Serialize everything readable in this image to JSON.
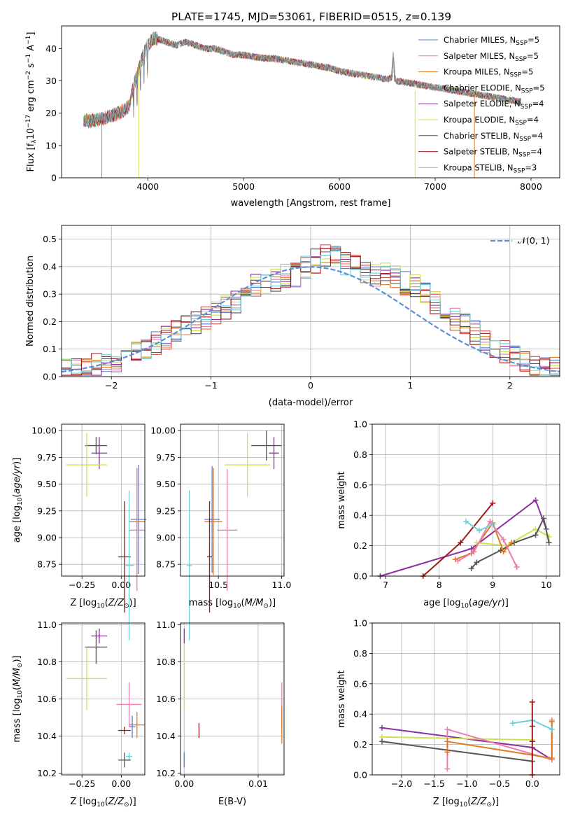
{
  "figure": {
    "title": "PLATE=1745, MJD=53061, FIBERID=0515, z=0.139"
  },
  "series_colors": {
    "Chabrier MILES": "#5b7fd8",
    "Salpeter MILES": "#e87fae",
    "Kroupa MILES": "#e07a20",
    "Chabrier ELODIE": "#d9534f",
    "Salpeter ELODIE": "#8e2ea0",
    "Kroupa ELODIE": "#cfe050",
    "Chabrier STELIB": "#555555",
    "Salpeter STELIB": "#9b1b1b",
    "Kroupa STELIB": "#6fd0d6"
  },
  "chart_data": [
    {
      "id": "spectrum",
      "type": "line",
      "title": "PLATE=1745, MJD=53061, FIBERID=0515, z=0.139",
      "xlabel": "wavelength [Angstrom, rest frame]",
      "ylabel": "Flux [f$_\\lambda$10$^{-17}$ erg cm$^{-2}$ s$^{-1}$ A$^{-1}$]",
      "ylabel_parts": [
        "Flux [f",
        "λ",
        "10",
        "−17",
        " erg cm",
        "−2",
        " s",
        "−1",
        " A",
        "−1",
        "]"
      ],
      "xlim": [
        3100,
        8300
      ],
      "ylim": [
        0,
        47
      ],
      "xticks": [
        4000,
        5000,
        6000,
        7000,
        8000
      ],
      "xtick_labels": [
        "4000",
        "5000",
        "6000",
        "7000",
        "8000"
      ],
      "yticks": [
        0,
        10,
        20,
        30,
        40
      ],
      "ytick_labels": [
        "0",
        "10",
        "20",
        "30",
        "40"
      ],
      "legend_position": "top-right",
      "legend": [
        {
          "name": "Chabrier MILES",
          "nssp": "5",
          "color": "#5b7fd8"
        },
        {
          "name": "Salpeter MILES",
          "nssp": "5",
          "color": "#e87fae"
        },
        {
          "name": "Kroupa MILES",
          "nssp": "5",
          "color": "#e07a20"
        },
        {
          "name": "Chabrier ELODIE",
          "nssp": "5",
          "color": "#d9534f"
        },
        {
          "name": "Salpeter ELODIE",
          "nssp": "4",
          "color": "#8e2ea0"
        },
        {
          "name": "Kroupa ELODIE",
          "nssp": "4",
          "color": "#cfe050"
        },
        {
          "name": "Chabrier STELIB",
          "nssp": "4",
          "color": "#555555"
        },
        {
          "name": "Salpeter STELIB",
          "nssp": "4",
          "color": "#9b1b1b"
        },
        {
          "name": "Kroupa STELIB",
          "nssp": "3",
          "color": "#6fd0d6"
        }
      ],
      "series": [
        {
          "name": "data",
          "color": "#888888",
          "x": [
            3330,
            3400,
            3500,
            3600,
            3700,
            3800,
            3850,
            3900,
            3950,
            4000,
            4050,
            4100,
            4200,
            4300,
            4400,
            4500,
            4600,
            4700,
            4800,
            4900,
            5000,
            5100,
            5200,
            5300,
            5400,
            5500,
            5600,
            5700,
            5800,
            5900,
            6000,
            6100,
            6200,
            6300,
            6400,
            6500,
            6550,
            6562,
            6575,
            6600,
            6700,
            6800,
            6900,
            7000,
            7100,
            7200,
            7300,
            7400,
            7500,
            7600,
            7700,
            7800,
            7900
          ],
          "y": [
            18,
            17.5,
            18,
            19,
            20,
            22,
            28,
            33,
            38,
            41,
            43,
            43,
            42,
            41,
            42,
            41,
            40,
            40,
            39,
            38,
            38,
            37.5,
            37,
            37,
            36.5,
            36,
            35.5,
            35,
            34.5,
            34,
            33,
            32.5,
            32,
            31.5,
            31,
            30.5,
            31,
            38,
            31,
            30,
            29.5,
            29,
            28.5,
            28,
            27.5,
            27,
            26.5,
            26,
            25.5,
            25,
            24.5,
            24,
            23.5
          ]
        }
      ],
      "masked_drops": [
        3520,
        3905,
        6790,
        7410
      ]
    },
    {
      "id": "residuals",
      "type": "bar",
      "xlabel": "(data-model)/error",
      "ylabel": "Normed distribution",
      "xlim": [
        -2.5,
        2.5
      ],
      "ylim": [
        0,
        0.55
      ],
      "xticks": [
        -2,
        -1,
        0,
        1,
        2
      ],
      "xtick_labels": [
        "−2",
        "−1",
        "0",
        "1",
        "2"
      ],
      "yticks": [
        0.0,
        0.1,
        0.2,
        0.3,
        0.4,
        0.5
      ],
      "ytick_labels": [
        "0.0",
        "0.1",
        "0.2",
        "0.3",
        "0.4",
        "0.5"
      ],
      "bin_width": 0.1,
      "bin_start": -2.5,
      "legend": [
        {
          "name": "𝒩(0, 1)",
          "color": "#5b8fd8",
          "style": "dashed"
        }
      ],
      "legend_position": "top-right",
      "base_values": [
        0.03,
        0.03,
        0.03,
        0.04,
        0.05,
        0.06,
        0.07,
        0.09,
        0.1,
        0.12,
        0.14,
        0.16,
        0.18,
        0.2,
        0.21,
        0.23,
        0.25,
        0.27,
        0.3,
        0.33,
        0.34,
        0.35,
        0.37,
        0.37,
        0.4,
        0.42,
        0.44,
        0.43,
        0.41,
        0.4,
        0.38,
        0.37,
        0.37,
        0.36,
        0.34,
        0.33,
        0.3,
        0.27,
        0.24,
        0.21,
        0.19,
        0.16,
        0.13,
        0.11,
        0.09,
        0.07,
        0.06,
        0.04,
        0.04,
        0.03
      ],
      "series": [
        {
          "name": "Chabrier MILES",
          "color": "#5b7fd8"
        },
        {
          "name": "Salpeter MILES",
          "color": "#e87fae"
        },
        {
          "name": "Kroupa MILES",
          "color": "#e07a20"
        },
        {
          "name": "Chabrier ELODIE",
          "color": "#d9534f"
        },
        {
          "name": "Salpeter ELODIE",
          "color": "#8e2ea0"
        },
        {
          "name": "Kroupa ELODIE",
          "color": "#cfe050"
        },
        {
          "name": "Chabrier STELIB",
          "color": "#555555"
        },
        {
          "name": "Salpeter STELIB",
          "color": "#9b1b1b"
        },
        {
          "name": "Kroupa STELIB",
          "color": "#6fd0d6"
        }
      ]
    },
    {
      "id": "age-vs-z",
      "type": "scatter",
      "xlabel": "Z [log₁₀(Z/Z⊙)]",
      "xlabel_parts": [
        "Z [log",
        "10",
        "(",
        "Z/Z",
        "⊙",
        ")]"
      ],
      "ylabel_parts": [
        "age  [log",
        "10",
        "(",
        "age/yr",
        ")]"
      ],
      "xlim": [
        -0.38,
        0.15
      ],
      "ylim": [
        8.64,
        10.06
      ],
      "xticks": [
        -0.25,
        0.0
      ],
      "xtick_labels": [
        "−0.25",
        "0.00"
      ],
      "yticks": [
        8.75,
        9.0,
        9.25,
        9.5,
        9.75,
        10.0
      ],
      "ytick_labels": [
        "8.75",
        "9.00",
        "9.25",
        "9.50",
        "9.75",
        "10.00"
      ],
      "points": [
        {
          "color": "#555555",
          "x": -0.16,
          "y": 9.86,
          "xerr": 0.07,
          "yerr": 0.08
        },
        {
          "color": "#8e2ea0",
          "x": -0.14,
          "y": 9.79,
          "xerr": 0.05,
          "yerr": 0.15
        },
        {
          "color": "#cfe050",
          "x": -0.22,
          "y": 9.68,
          "xerr": 0.13,
          "yerr": 0.3
        },
        {
          "color": "#5b7fd8",
          "x": 0.11,
          "y": 9.17,
          "xerr": 0.05,
          "yerr": 0.51
        },
        {
          "color": "#e07a20",
          "x": 0.1,
          "y": 9.15,
          "xerr": 0.05,
          "yerr": 0.5
        },
        {
          "color": "#e87fae",
          "x": 0.1,
          "y": 9.07,
          "xerr": 0.05,
          "yerr": 0.57
        },
        {
          "color": "#9b1b1b",
          "x": 0.02,
          "y": 8.82,
          "xerr": 0.04,
          "yerr": 0.52
        },
        {
          "color": "#6fd0d6",
          "x": 0.05,
          "y": 8.74,
          "xerr": 0.03,
          "yerr": 0.7
        }
      ]
    },
    {
      "id": "age-vs-mass",
      "type": "scatter",
      "xlabel_parts": [
        "mass [log",
        "10",
        "(",
        "M/M",
        "⊙",
        ")]"
      ],
      "xlim": [
        10.2,
        11.02
      ],
      "ylim": [
        8.64,
        10.06
      ],
      "xticks": [
        10.5,
        11.0
      ],
      "xtick_labels": [
        "10.5",
        "11.0"
      ],
      "yticks": [
        8.75,
        9.0,
        9.25,
        9.5,
        9.75,
        10.0
      ],
      "ytick_labels": [
        "8.75",
        "9.00",
        "9.25",
        "9.50",
        "9.75",
        "10.00"
      ],
      "points": [
        {
          "color": "#555555",
          "x": 10.88,
          "y": 9.86,
          "xerr": 0.12,
          "yerr": 0.14
        },
        {
          "color": "#8e2ea0",
          "x": 10.94,
          "y": 9.79,
          "xerr": 0.04,
          "yerr": 0.15
        },
        {
          "color": "#cfe050",
          "x": 10.73,
          "y": 9.68,
          "xerr": 0.18,
          "yerr": 0.3
        },
        {
          "color": "#5b7fd8",
          "x": 10.45,
          "y": 9.17,
          "xerr": 0.06,
          "yerr": 0.5
        },
        {
          "color": "#e07a20",
          "x": 10.46,
          "y": 9.15,
          "xerr": 0.07,
          "yerr": 0.5
        },
        {
          "color": "#e87fae",
          "x": 10.57,
          "y": 9.07,
          "xerr": 0.08,
          "yerr": 0.57
        },
        {
          "color": "#9b1b1b",
          "x": 10.43,
          "y": 8.82,
          "xerr": 0.02,
          "yerr": 0.52
        },
        {
          "color": "#6fd0d6",
          "x": 10.27,
          "y": 8.74,
          "xerr": 0.02,
          "yerr": 0.7
        }
      ]
    },
    {
      "id": "massweight-vs-age",
      "type": "line",
      "ylabel": "mass weight",
      "xlabel_parts": [
        "age  [log",
        "10",
        "(",
        "age/yr",
        ")]"
      ],
      "xlim": [
        6.75,
        10.25
      ],
      "ylim": [
        0.0,
        1.0
      ],
      "xticks": [
        7,
        8,
        9,
        10
      ],
      "xtick_labels": [
        "7",
        "8",
        "9",
        "10"
      ],
      "yticks": [
        0.0,
        0.2,
        0.4,
        0.6,
        0.8,
        1.0
      ],
      "ytick_labels": [
        "0.0",
        "0.2",
        "0.4",
        "0.6",
        "0.8",
        "1.0"
      ],
      "series": [
        {
          "color": "#8e2ea0",
          "x": [
            6.9,
            8.6,
            9.8,
            10.0
          ],
          "y": [
            0.0,
            0.18,
            0.5,
            0.31
          ]
        },
        {
          "color": "#9b1b1b",
          "x": [
            7.7,
            8.4,
            9.0
          ],
          "y": [
            0.0,
            0.22,
            0.48
          ]
        },
        {
          "color": "#cfe050",
          "x": [
            8.7,
            9.25,
            9.8,
            10.05
          ],
          "y": [
            0.22,
            0.2,
            0.31,
            0.26
          ]
        },
        {
          "color": "#555555",
          "x": [
            8.6,
            8.7,
            9.15,
            9.4,
            9.8,
            9.95,
            10.05
          ],
          "y": [
            0.05,
            0.09,
            0.17,
            0.22,
            0.27,
            0.38,
            0.22
          ]
        },
        {
          "color": "#e07a20",
          "x": [
            8.3,
            8.6,
            9.0,
            9.2,
            9.35
          ],
          "y": [
            0.11,
            0.15,
            0.35,
            0.16,
            0.22
          ]
        },
        {
          "color": "#e87fae",
          "x": [
            8.35,
            8.65,
            8.95,
            9.2,
            9.45
          ],
          "y": [
            0.1,
            0.16,
            0.36,
            0.24,
            0.06
          ]
        },
        {
          "color": "#6fd0d6",
          "x": [
            8.5,
            8.75,
            9.0
          ],
          "y": [
            0.36,
            0.3,
            0.34
          ]
        }
      ]
    },
    {
      "id": "mass-vs-z",
      "type": "scatter",
      "xlabel_parts": [
        "Z [log",
        "10",
        "(",
        "Z/Z",
        "⊙",
        ")]"
      ],
      "ylabel_parts": [
        "mass [log",
        "10",
        "(",
        "M/M",
        "⊙",
        ")]"
      ],
      "xlim": [
        -0.38,
        0.15
      ],
      "ylim": [
        10.19,
        11.01
      ],
      "xticks": [
        -0.25,
        0.0
      ],
      "xtick_labels": [
        "−0.25",
        "0.00"
      ],
      "yticks": [
        10.2,
        10.4,
        10.6,
        10.8,
        11.0
      ],
      "ytick_labels": [
        "10.2",
        "10.4",
        "10.6",
        "10.8",
        "11.0"
      ],
      "points": [
        {
          "color": "#8e2ea0",
          "x": -0.14,
          "y": 10.94,
          "xerr": 0.05,
          "yerr": 0.04
        },
        {
          "color": "#555555",
          "x": -0.16,
          "y": 10.88,
          "xerr": 0.07,
          "yerr": 0.09
        },
        {
          "color": "#cfe050",
          "x": -0.22,
          "y": 10.71,
          "xerr": 0.13,
          "yerr": 0.17
        },
        {
          "color": "#e87fae",
          "x": 0.05,
          "y": 10.57,
          "xerr": 0.08,
          "yerr": 0.12
        },
        {
          "color": "#e07a20",
          "x": 0.1,
          "y": 10.46,
          "xerr": 0.05,
          "yerr": 0.07
        },
        {
          "color": "#5b7fd8",
          "x": 0.07,
          "y": 10.45,
          "xerr": 0.02,
          "yerr": 0.06
        },
        {
          "color": "#9b1b1b",
          "x": 0.02,
          "y": 10.43,
          "xerr": 0.04,
          "yerr": 0.02
        },
        {
          "color": "#6fd0d6",
          "x": 0.05,
          "y": 10.29,
          "xerr": 0.02,
          "yerr": 0.02
        },
        {
          "color": "#555555",
          "x": 0.02,
          "y": 10.27,
          "xerr": 0.04,
          "yerr": 0.04
        }
      ]
    },
    {
      "id": "mass-vs-ebv",
      "type": "scatter",
      "xlabel": "E(B-V)",
      "xlim": [
        -0.0005,
        0.0135
      ],
      "ylim": [
        10.19,
        11.01
      ],
      "xticks": [
        0.0,
        0.01
      ],
      "xtick_labels": [
        "0.00",
        "0.01"
      ],
      "yticks": [
        10.2,
        10.4,
        10.6,
        10.8,
        11.0
      ],
      "ytick_labels": [
        "10.2",
        "10.4",
        "10.6",
        "10.8",
        "11.0"
      ],
      "points": [
        {
          "color": "#8e2ea0",
          "x": 0.0,
          "y": 10.94,
          "xerr": 0,
          "yerr": 0.04
        },
        {
          "color": "#cfe050",
          "x": 0.0,
          "y": 10.71,
          "xerr": 0,
          "yerr": 0.17
        },
        {
          "color": "#e87fae",
          "x": 0.0132,
          "y": 10.57,
          "xerr": 0,
          "yerr": 0.12
        },
        {
          "color": "#e07a20",
          "x": 0.0132,
          "y": 10.46,
          "xerr": 0,
          "yerr": 0.1
        },
        {
          "color": "#9b1b1b",
          "x": 0.002,
          "y": 10.43,
          "xerr": 0,
          "yerr": 0.04
        },
        {
          "color": "#6fd0d6",
          "x": 0.0,
          "y": 10.28,
          "xerr": 0,
          "yerr": 0.04
        },
        {
          "color": "#5b7fd8",
          "x": 0.0,
          "y": 10.27,
          "xerr": 0,
          "yerr": 0.04
        }
      ]
    },
    {
      "id": "massweight-vs-z",
      "type": "line",
      "ylabel": "mass weight",
      "xlabel_parts": [
        "Z [log",
        "10",
        "(",
        "Z/Z",
        "⊙",
        ")]"
      ],
      "xlim": [
        -2.45,
        0.42
      ],
      "ylim": [
        0.0,
        1.0
      ],
      "xticks": [
        -2.0,
        -1.5,
        -1.0,
        -0.5,
        0.0
      ],
      "xtick_labels": [
        "−2.0",
        "−1.5",
        "−1.0",
        "−0.5",
        "0.0"
      ],
      "yticks": [
        0.0,
        0.2,
        0.4,
        0.6,
        0.8,
        1.0
      ],
      "ytick_labels": [
        "0.0",
        "0.2",
        "0.4",
        "0.6",
        "0.8",
        "1.0"
      ],
      "series": [
        {
          "color": "#8e2ea0",
          "x": [
            -2.3,
            0.0,
            0.3
          ],
          "y": [
            0.31,
            0.18,
            0.1
          ]
        },
        {
          "color": "#cfe050",
          "x": [
            -2.3,
            0.0
          ],
          "y": [
            0.25,
            0.23
          ]
        },
        {
          "color": "#555555",
          "x": [
            -2.3,
            0.0
          ],
          "y": [
            0.22,
            0.09
          ]
        },
        {
          "color": "#e87fae",
          "x": [
            -1.3,
            -1.3,
            0.3,
            0.3
          ],
          "y": [
            0.04,
            0.3,
            0.1,
            0.36
          ]
        },
        {
          "color": "#e07a20",
          "x": [
            -1.3,
            -1.3,
            0.3,
            0.3
          ],
          "y": [
            0.15,
            0.22,
            0.11,
            0.35
          ]
        },
        {
          "color": "#6fd0d6",
          "x": [
            -0.3,
            0.0,
            0.3
          ],
          "y": [
            0.34,
            0.36,
            0.3
          ]
        },
        {
          "color": "#9b1b1b",
          "x": [
            0.0,
            0.0,
            0.0,
            0.0
          ],
          "y": [
            0.0,
            0.22,
            0.32,
            0.48
          ]
        }
      ]
    }
  ]
}
